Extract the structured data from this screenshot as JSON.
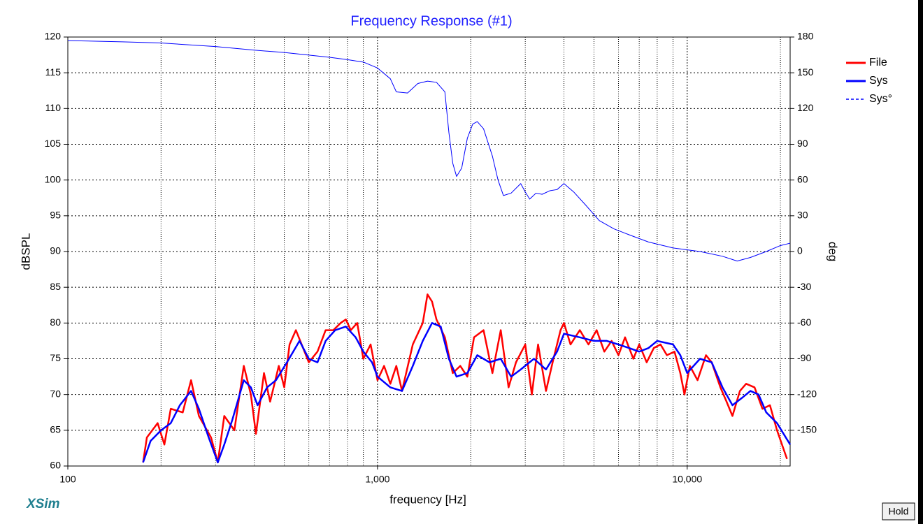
{
  "chart_data": {
    "type": "line",
    "title": "Frequency Response (#1)",
    "xlabel": "frequency [Hz]",
    "ylabel": "dBSPL",
    "y2label": "deg",
    "xscale": "log",
    "grid": true,
    "legend": "right",
    "xlim": [
      100,
      21500
    ],
    "xticks": [
      100,
      {
        "value": 1000,
        "label": "1,000"
      },
      {
        "value": 10000,
        "label": "10,000"
      }
    ],
    "ylim": [
      60,
      120
    ],
    "yticks": [
      60,
      65,
      70,
      75,
      80,
      85,
      90,
      95,
      100,
      105,
      110,
      115,
      120
    ],
    "y2lim": [
      -180,
      180
    ],
    "y2ticks": [
      180,
      150,
      120,
      90,
      60,
      30,
      0,
      -30,
      -60,
      -90,
      -120,
      -150
    ],
    "series": [
      {
        "name": "File",
        "color": "#ff0000",
        "width": 2.5,
        "x": [
          175,
          180,
          195,
          205,
          215,
          235,
          250,
          265,
          290,
          305,
          320,
          345,
          370,
          390,
          405,
          430,
          450,
          480,
          500,
          520,
          545,
          575,
          600,
          640,
          680,
          720,
          760,
          790,
          820,
          860,
          900,
          950,
          1000,
          1050,
          1100,
          1150,
          1200,
          1300,
          1400,
          1450,
          1500,
          1550,
          1650,
          1750,
          1850,
          1950,
          2050,
          2200,
          2350,
          2500,
          2650,
          2800,
          3000,
          3150,
          3300,
          3500,
          3700,
          3900,
          4000,
          4200,
          4500,
          4800,
          5100,
          5400,
          5700,
          6000,
          6300,
          6700,
          7000,
          7400,
          7800,
          8200,
          8600,
          9100,
          9500,
          9800,
          10200,
          10800,
          11500,
          12000,
          12800,
          13400,
          14000,
          14800,
          15500,
          16500,
          17500,
          18500,
          19500,
          21000
        ],
        "values": [
          60.5,
          64,
          66,
          63,
          68,
          67.5,
          72,
          67,
          64,
          60.5,
          67,
          65,
          74,
          70,
          64.5,
          73,
          69,
          74,
          71,
          77,
          79,
          76.5,
          74.5,
          76,
          79,
          79,
          80,
          80.5,
          79,
          80,
          75,
          77,
          72,
          74,
          71.5,
          74,
          70.5,
          77,
          80,
          84,
          83,
          80.5,
          78,
          73,
          74,
          72.5,
          78,
          79,
          73,
          79,
          71,
          74.5,
          77,
          70,
          77,
          70.5,
          75,
          79,
          80,
          77,
          79,
          77,
          79,
          76,
          77.5,
          75.5,
          78,
          75,
          77,
          74.5,
          76.5,
          77,
          75.5,
          76,
          73,
          70,
          74,
          72,
          75.5,
          74.5,
          71,
          69,
          67,
          70.5,
          71.5,
          71,
          68,
          68.5,
          65,
          61
        ]
      },
      {
        "name": "Sys",
        "color": "#0000ff",
        "width": 2.5,
        "x": [
          175,
          185,
          200,
          215,
          230,
          250,
          265,
          285,
          305,
          320,
          340,
          370,
          390,
          410,
          440,
          470,
          510,
          560,
          600,
          640,
          680,
          730,
          790,
          850,
          900,
          960,
          1000,
          1100,
          1200,
          1300,
          1400,
          1500,
          1600,
          1700,
          1800,
          1950,
          2100,
          2300,
          2500,
          2700,
          2900,
          3200,
          3500,
          3800,
          4000,
          4500,
          5000,
          5500,
          6000,
          6500,
          7000,
          7500,
          8000,
          9000,
          9500,
          10000,
          11000,
          12000,
          13000,
          14000,
          15000,
          16000,
          17000,
          18000,
          19500,
          21500
        ],
        "values": [
          60.5,
          63.5,
          65,
          66,
          68.5,
          70.5,
          68,
          64,
          60.5,
          63,
          66.5,
          72,
          71,
          68.5,
          71,
          72,
          74.5,
          77.5,
          75,
          74.5,
          77.5,
          79,
          79.5,
          78,
          76,
          74.5,
          72.5,
          71,
          70.5,
          74,
          77.5,
          80,
          79.5,
          75,
          72.5,
          73,
          75.5,
          74.5,
          75,
          72.5,
          73.5,
          75,
          73.5,
          76,
          78.5,
          78,
          77.5,
          77.5,
          77,
          76.5,
          76,
          76.5,
          77.5,
          77,
          75.5,
          73,
          75,
          74.5,
          71,
          68.5,
          69.5,
          70.5,
          70,
          67.5,
          66,
          63
        ]
      },
      {
        "name": "Sys°",
        "color": "#0000ff",
        "width": 1,
        "dash": true,
        "axis": "y2",
        "x": [
          100,
          150,
          200,
          300,
          400,
          500,
          700,
          800,
          900,
          1000,
          1100,
          1150,
          1250,
          1350,
          1450,
          1550,
          1650,
          1700,
          1750,
          1800,
          1870,
          1950,
          2030,
          2100,
          2200,
          2350,
          2450,
          2550,
          2700,
          2900,
          3000,
          3100,
          3250,
          3400,
          3600,
          3800,
          4000,
          4300,
          4700,
          5200,
          5800,
          6500,
          7500,
          9000,
          11000,
          13000,
          14500,
          16000,
          18000,
          20000,
          21500
        ],
        "values": [
          177,
          176,
          175,
          172,
          169,
          167,
          163,
          161,
          159,
          154,
          145,
          134,
          133,
          141,
          143,
          142,
          134,
          100,
          74,
          63,
          70,
          95,
          107,
          109,
          103,
          80,
          60,
          47,
          49,
          57,
          50,
          44,
          49,
          48,
          51,
          52,
          57,
          50,
          39,
          26,
          19,
          14,
          8,
          3,
          0,
          -4,
          -8,
          -5,
          0,
          5,
          7
        ]
      }
    ]
  },
  "brand": "XSim",
  "button": "Hold"
}
